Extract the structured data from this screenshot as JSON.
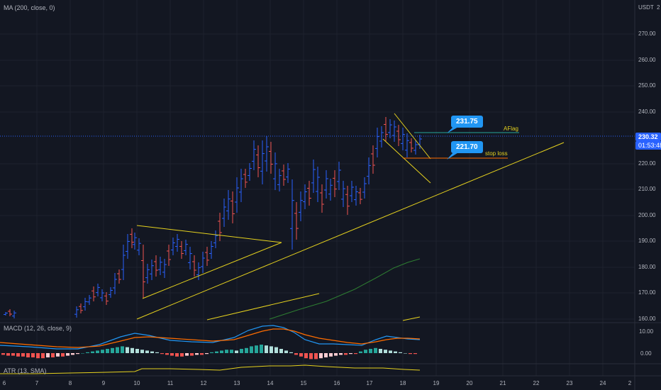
{
  "header": {
    "ma_label": "MA (200, close, 0)",
    "currency": "USDT",
    "top_right_tick": "2"
  },
  "price_axis": {
    "ticks": [
      "270.00",
      "260.00",
      "250.00",
      "240.00",
      "220.00",
      "210.00",
      "200.00",
      "190.00",
      "180.00",
      "170.00",
      "160.00"
    ],
    "last_price": "230.32",
    "countdown": "01:53:48",
    "last_price_color": "#2962ff"
  },
  "macd": {
    "label": "MACD (12, 26, close, 9)",
    "ticks": [
      "10.00",
      "0.00"
    ]
  },
  "atr": {
    "label": "ATR (13, SMA)"
  },
  "annotations": {
    "target_price": "231.75",
    "target_text": "AFlag",
    "stop_price": "221.70",
    "stop_text": "stop loss"
  },
  "time_axis": {
    "ticks": [
      "6",
      "7",
      "8",
      "9",
      "10",
      "11",
      "12",
      "13",
      "14",
      "15",
      "16",
      "17",
      "18",
      "19",
      "20",
      "21",
      "22",
      "23",
      "24",
      "2"
    ]
  },
  "colors": {
    "up": "#2962ff",
    "down": "#ef5350",
    "trend_lines": "#e6d21e",
    "ma_line": "#2e7d32",
    "macd_line": "#2196f3",
    "signal_line": "#ff6d00",
    "atr_line": "#e6d21e",
    "callout": "#2196f3"
  }
}
